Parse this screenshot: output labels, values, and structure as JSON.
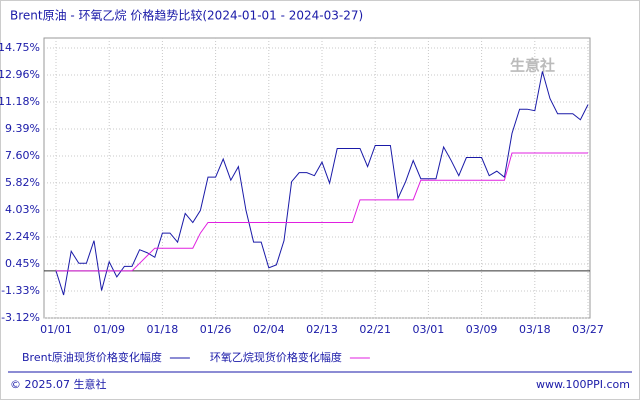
{
  "chart_data": {
    "type": "line",
    "title": "Brent原油 - 环氧乙烷 价格趋势比较(2024-01-01 - 2024-03-27)",
    "watermark": "生意社",
    "footer_left": "© 2025.07 生意社",
    "footer_right": "www.100PPI.com",
    "categories": [
      "01/01",
      null,
      null,
      null,
      null,
      null,
      null,
      "01/09",
      null,
      null,
      null,
      null,
      null,
      null,
      "01/18",
      null,
      null,
      null,
      null,
      null,
      null,
      "01/26",
      null,
      null,
      null,
      null,
      null,
      null,
      "02/04",
      null,
      null,
      null,
      null,
      null,
      null,
      "02/13",
      null,
      null,
      null,
      null,
      null,
      null,
      "02/21",
      null,
      null,
      null,
      null,
      null,
      null,
      "03/01",
      null,
      null,
      null,
      null,
      null,
      null,
      "03/09",
      null,
      null,
      null,
      null,
      null,
      null,
      "03/18",
      null,
      null,
      null,
      null,
      null,
      null,
      "03/27"
    ],
    "series": [
      {
        "name": "Brent原油现货价格变化幅度",
        "color": "#1a1aa8",
        "values": [
          0,
          -1.6,
          1.3,
          0.5,
          0.5,
          2.0,
          -1.3,
          0.6,
          -0.4,
          0.3,
          0.3,
          1.4,
          1.2,
          0.9,
          2.5,
          2.5,
          1.9,
          3.8,
          3.2,
          4.0,
          6.2,
          6.2,
          7.4,
          6.0,
          6.9,
          4.0,
          1.9,
          1.9,
          0.2,
          0.4,
          2.0,
          5.9,
          6.5,
          6.5,
          6.3,
          7.2,
          5.8,
          8.1,
          8.1,
          8.1,
          8.1,
          6.9,
          8.3,
          8.3,
          8.3,
          4.8,
          5.9,
          7.3,
          6.1,
          6.1,
          6.1,
          8.2,
          7.3,
          6.3,
          7.5,
          7.5,
          7.5,
          6.3,
          6.6,
          6.2,
          9.1,
          10.7,
          10.7,
          10.6,
          13.2,
          11.4,
          10.4,
          10.4,
          10.4,
          10.0,
          11.0
        ]
      },
      {
        "name": "环氧乙烷现货价格变化幅度",
        "color": "#e020e0",
        "values": [
          0,
          0,
          0,
          0,
          0,
          0,
          0,
          0,
          0,
          0,
          0,
          0.5,
          1.0,
          1.5,
          1.5,
          1.5,
          1.5,
          1.5,
          1.5,
          2.5,
          3.2,
          3.2,
          3.2,
          3.2,
          3.2,
          3.2,
          3.2,
          3.2,
          3.2,
          3.2,
          3.2,
          3.2,
          3.2,
          3.2,
          3.2,
          3.2,
          3.2,
          3.2,
          3.2,
          3.2,
          4.7,
          4.7,
          4.7,
          4.7,
          4.7,
          4.7,
          4.7,
          4.7,
          6.0,
          6.0,
          6.0,
          6.0,
          6.0,
          6.0,
          6.0,
          6.0,
          6.0,
          6.0,
          6.0,
          6.0,
          7.8,
          7.8,
          7.8,
          7.8,
          7.8,
          7.8,
          7.8,
          7.8,
          7.8,
          7.8,
          7.8
        ]
      }
    ],
    "ylim": [
      -3.12,
      14.75
    ],
    "yticks": [
      {
        "value": -3.12,
        "label": "-3.12%"
      },
      {
        "value": -1.33,
        "label": "-1.33%"
      },
      {
        "value": 0.45,
        "label": "0.45%"
      },
      {
        "value": 2.24,
        "label": "2.24%"
      },
      {
        "value": 4.03,
        "label": "4.03%"
      },
      {
        "value": 5.82,
        "label": "5.82%"
      },
      {
        "value": 7.6,
        "label": "7.60%"
      },
      {
        "value": 9.39,
        "label": "9.39%"
      },
      {
        "value": 11.18,
        "label": "11.18%"
      },
      {
        "value": 12.96,
        "label": "12.96%"
      },
      {
        "value": 14.75,
        "label": "14.75%"
      }
    ],
    "grid": true
  }
}
